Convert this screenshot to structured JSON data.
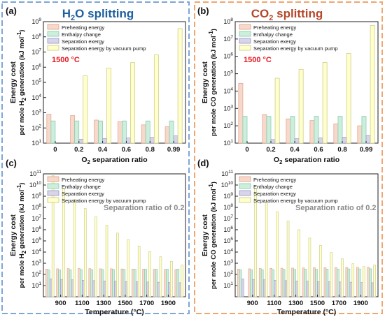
{
  "header": {
    "left_title_parts": [
      "H",
      "2",
      "O splitting"
    ],
    "right_title_parts": [
      "CO",
      "2",
      " splitting"
    ],
    "left_color": "#1f5f9e",
    "right_color": "#b5482a",
    "left_border_color": "#7ea6d8",
    "right_border_color": "#f0a670"
  },
  "legend": {
    "entries": [
      "Preheating energy",
      "Enthalpy change",
      "Separation exergy",
      "Separation energy by vacuum pump"
    ],
    "colors": [
      "#f7d9cc",
      "#cdeedd",
      "#d8d4e9",
      "#ffffcc"
    ],
    "edges": [
      "#e0a086",
      "#7fcaa5",
      "#9c93c4",
      "#c9c880"
    ]
  },
  "annotations": {
    "temperature": "1500 °C",
    "temperature_color": "#e8151c",
    "separation_ratio": "Separation ratio of 0.2"
  },
  "ylabel_line1": "Energy cost",
  "chart_data": [
    {
      "panel": "(a)",
      "type": "bar",
      "yscale": "log",
      "ylim": [
        10,
        1000000000.0
      ],
      "title": "",
      "xlabel_parts": [
        "O",
        "2",
        " separation ratio"
      ],
      "ylabel_parts": [
        "per mole H",
        "2",
        " generation (kJ mol",
        "-1",
        ")"
      ],
      "yticks": [
        1,
        2,
        3,
        4,
        5,
        6,
        7,
        8,
        9
      ],
      "categories": [
        "0",
        "0.2",
        "0.4",
        "0.6",
        "0.8",
        "0.99"
      ],
      "series": [
        {
          "name": "Preheating energy",
          "values": [
            800,
            650,
            330,
            260,
            160,
            120
          ]
        },
        {
          "name": "Enthalpy change",
          "values": [
            290,
            290,
            290,
            290,
            290,
            290
          ]
        },
        {
          "name": "Separation exergy",
          "values": [
            null,
            18,
            20,
            22,
            24,
            30
          ]
        },
        {
          "name": "Separation energy by vacuum pump",
          "values": [
            null,
            270000,
            880000,
            2000000,
            6500000,
            350000000
          ]
        }
      ]
    },
    {
      "panel": "(b)",
      "type": "bar",
      "yscale": "log",
      "ylim": [
        10,
        100000000.0
      ],
      "title": "",
      "xlabel_parts": [
        "O",
        "2",
        " separation ratio"
      ],
      "ylabel_parts": [
        "per mole CO generation (kJ mol",
        "-1",
        ")"
      ],
      "yticks": [
        1,
        2,
        3,
        4,
        5,
        6,
        7,
        8
      ],
      "categories": [
        "0",
        "0.2",
        "0.4",
        "0.6",
        "0.8",
        "0.99"
      ],
      "series": [
        {
          "name": "Preheating energy",
          "values": [
            28000,
            450,
            250,
            200,
            130,
            100
          ]
        },
        {
          "name": "Enthalpy change",
          "values": [
            350,
            350,
            350,
            350,
            350,
            350
          ]
        },
        {
          "name": "Separation exergy",
          "values": [
            null,
            16,
            18,
            20,
            22,
            28
          ]
        },
        {
          "name": "Separation energy by vacuum pump",
          "values": [
            null,
            55000,
            180000,
            450000,
            1500000,
            60000000
          ]
        }
      ]
    },
    {
      "panel": "(c)",
      "type": "bar",
      "yscale": "log",
      "ylim": [
        1,
        100000000000.0
      ],
      "title": "",
      "xlabel": "Temperature (°C)",
      "ylabel_parts": [
        "per mole H",
        "2",
        " generation (kJ mol",
        "-1",
        ")"
      ],
      "yticks": [
        1,
        2,
        3,
        4,
        5,
        6,
        7,
        8,
        9,
        10,
        11
      ],
      "x": [
        800,
        900,
        1000,
        1100,
        1200,
        1300,
        1400,
        1500,
        1600,
        1700,
        1800,
        1900,
        2000
      ],
      "xtick_labels": [
        "900",
        "1100",
        "1300",
        "1500",
        "1700",
        "1900"
      ],
      "xtick_values": [
        900,
        1100,
        1300,
        1500,
        1700,
        1900
      ],
      "series": [
        {
          "name": "Preheating energy",
          "values": [
            300,
            320,
            330,
            340,
            330,
            320,
            320,
            310,
            300,
            300,
            290,
            280,
            270
          ]
        },
        {
          "name": "Enthalpy change",
          "values": [
            250,
            250,
            260,
            270,
            270,
            280,
            280,
            280,
            290,
            290,
            290,
            300,
            300
          ]
        },
        {
          "name": "Separation exergy",
          "values": [
            40,
            36,
            33,
            30,
            28,
            26,
            25,
            23,
            22,
            21,
            20,
            19,
            18
          ]
        },
        {
          "name": "Separation energy by vacuum pump",
          "values": [
            70000000000,
            5000000000,
            500000000,
            80000000,
            14000000,
            2500000,
            500000,
            130000,
            35000,
            11000,
            3800,
            1500,
            700
          ]
        }
      ]
    },
    {
      "panel": "(d)",
      "type": "bar",
      "yscale": "log",
      "ylim": [
        1,
        100000000000.0
      ],
      "title": "",
      "xlabel": "Temperature (°C)",
      "ylabel_parts": [
        "per mole CO generation (kJ mol",
        "-1",
        ")"
      ],
      "yticks": [
        1,
        2,
        3,
        4,
        5,
        6,
        7,
        8,
        9,
        10,
        11
      ],
      "x": [
        800,
        900,
        1000,
        1100,
        1200,
        1300,
        1400,
        1500,
        1600,
        1700,
        1800,
        1900,
        2000
      ],
      "xtick_labels": [
        "900",
        "1100",
        "1300",
        "1500",
        "1700",
        "1900"
      ],
      "xtick_values": [
        900,
        1100,
        1300,
        1500,
        1700,
        1900
      ],
      "series": [
        {
          "name": "Preheating energy",
          "values": [
            300,
            320,
            340,
            350,
            360,
            370,
            380,
            390,
            400,
            410,
            420,
            430,
            440
          ]
        },
        {
          "name": "Enthalpy change",
          "values": [
            260,
            260,
            270,
            270,
            280,
            280,
            290,
            290,
            300,
            300,
            310,
            310,
            320
          ]
        },
        {
          "name": "Separation exergy",
          "values": [
            40,
            36,
            33,
            30,
            28,
            26,
            25,
            23,
            22,
            21,
            20,
            19,
            18
          ]
        },
        {
          "name": "Separation energy by vacuum pump",
          "values": [
            null,
            5000000000,
            300000000,
            40000000,
            6000000,
            1000000,
            180000,
            40000,
            9000,
            2500,
            900,
            500,
            700
          ]
        }
      ]
    }
  ]
}
